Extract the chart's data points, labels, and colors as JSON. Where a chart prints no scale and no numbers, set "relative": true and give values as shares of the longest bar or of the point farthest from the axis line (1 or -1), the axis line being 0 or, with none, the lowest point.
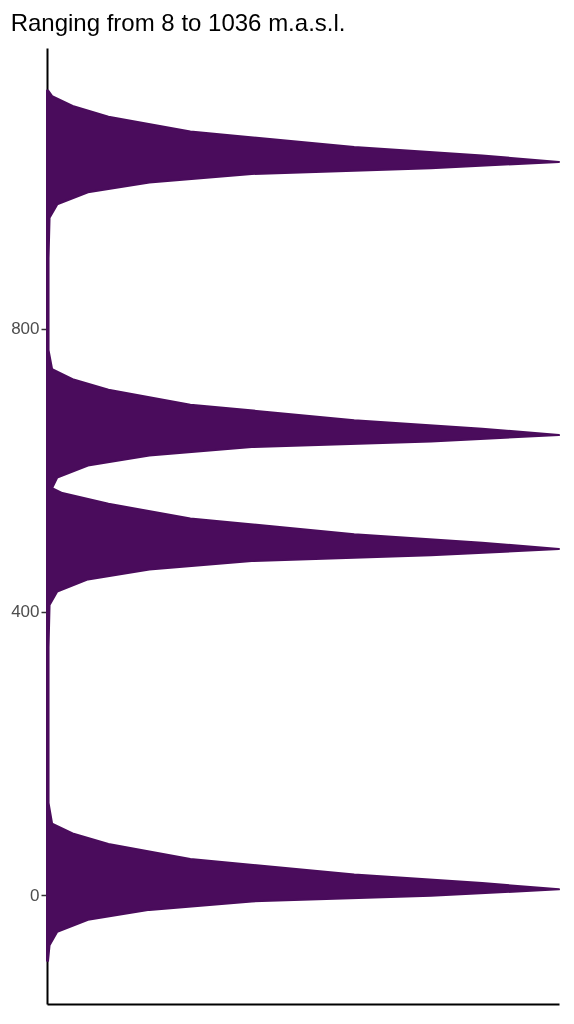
{
  "chart_data": {
    "type": "area",
    "title": "Ranging from 8 to 1036 m.a.s.l.",
    "orientation": "horizontal",
    "relative": true,
    "color": "#4a0c5c",
    "tick_labels": "y",
    "x": [
      -93,
      -71,
      -52,
      -35,
      -21,
      -9,
      -1,
      8,
      17,
      29,
      51,
      72,
      87,
      101,
      130,
      300,
      350,
      410,
      429,
      446,
      460,
      472,
      480,
      489,
      498,
      510,
      532,
      553,
      568,
      575,
      590,
      607,
      621,
      633,
      641,
      650,
      659,
      671,
      693,
      714,
      729,
      743,
      770,
      900,
      957,
      976,
      993,
      1007,
      1019,
      1027,
      1036,
      1045,
      1057,
      1079,
      1100,
      1115,
      1129,
      1137
    ],
    "values": [
      0.002,
      0.005,
      0.02,
      0.08,
      0.2,
      0.4,
      0.75,
      1,
      0.85,
      0.6,
      0.28,
      0.12,
      0.05,
      0.01,
      0.003,
      0.003,
      0.003,
      0.005,
      0.02,
      0.08,
      0.2,
      0.4,
      0.75,
      1,
      0.85,
      0.6,
      0.28,
      0.12,
      0.03,
      0.01,
      0.02,
      0.08,
      0.2,
      0.4,
      0.75,
      1,
      0.85,
      0.6,
      0.28,
      0.12,
      0.05,
      0.01,
      0.003,
      0.003,
      0.005,
      0.02,
      0.08,
      0.2,
      0.4,
      0.75,
      1,
      0.85,
      0.6,
      0.28,
      0.12,
      0.05,
      0.01,
      0.002
    ],
    "ylim": [
      -154,
      1197
    ],
    "yticks": [
      0,
      400,
      800
    ]
  }
}
